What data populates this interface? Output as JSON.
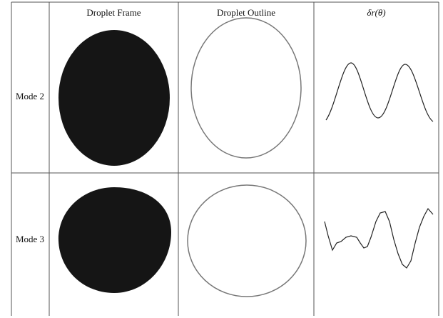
{
  "table": {
    "header": {
      "frame": "Droplet Frame",
      "outline": "Droplet Outline",
      "delta": "δr(θ)"
    },
    "rows": [
      {
        "label": "Mode 2"
      },
      {
        "label": "Mode 3"
      }
    ]
  }
}
